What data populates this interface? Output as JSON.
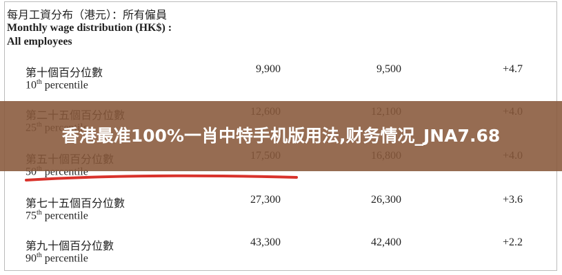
{
  "header": {
    "title_zh": "每月工資分布（港元）：所有僱員",
    "title_en": "Monthly wage distribution (HK$) :",
    "subtitle_en": "All employees"
  },
  "table": {
    "rows": [
      {
        "label_zh": "第十個百分位數",
        "ordinal": "10",
        "suffix": "th",
        "label_en": "percentile",
        "col1": "9,900",
        "col2": "9,500",
        "change": "+4.7"
      },
      {
        "label_zh": "第二十五個百分位數",
        "ordinal": "25",
        "suffix": "th",
        "label_en": "percentile",
        "col1": "12,600",
        "col2": "12,100",
        "change": "+4.0"
      },
      {
        "label_zh": "第五十個百分位數",
        "ordinal": "50",
        "suffix": "th",
        "label_en": "percentile",
        "col1": "17,500",
        "col2": "16,800",
        "change": "+4.0"
      },
      {
        "label_zh": "第七十五個百分位數",
        "ordinal": "75",
        "suffix": "th",
        "label_en": "percentile",
        "col1": "27,300",
        "col2": "26,300",
        "change": "+3.6"
      },
      {
        "label_zh": "第九十個百分位數",
        "ordinal": "90",
        "suffix": "th",
        "label_en": "percentile",
        "col1": "43,300",
        "col2": "42,400",
        "change": "+2.2"
      }
    ]
  },
  "banner": {
    "text": "香港最准100%一肖中特手机版用法,财务情况_JNA7.68"
  }
}
